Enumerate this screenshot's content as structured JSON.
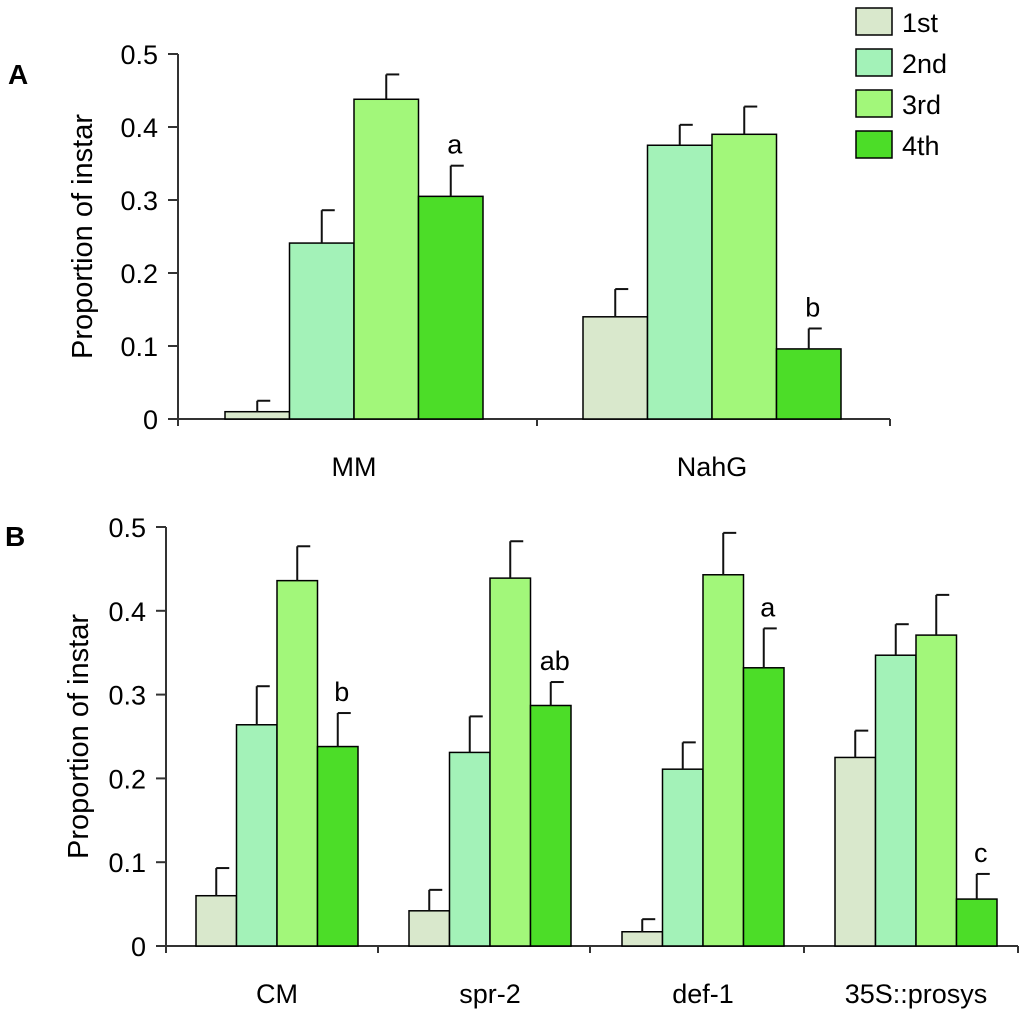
{
  "legend": {
    "entries": [
      {
        "label": "1st",
        "color": "#d9e8cc"
      },
      {
        "label": "2nd",
        "color": "#a3f2b8"
      },
      {
        "label": "3rd",
        "color": "#a2f77a"
      },
      {
        "label": "4th",
        "color": "#4cdd28"
      }
    ]
  },
  "chart_data": [
    {
      "panel": "A",
      "type": "bar",
      "ylabel": "Proportion of instar",
      "xlabel": "",
      "ylim": [
        0,
        0.5
      ],
      "yticks": [
        "0",
        "0.1",
        "0.2",
        "0.3",
        "0.4",
        "0.5"
      ],
      "categories": [
        "MM",
        "NahG"
      ],
      "series": [
        {
          "name": "1st",
          "values": [
            0.01,
            0.14
          ],
          "errors": [
            0.015,
            0.038
          ]
        },
        {
          "name": "2nd",
          "values": [
            0.241,
            0.375
          ],
          "errors": [
            0.045,
            0.028
          ]
        },
        {
          "name": "3rd",
          "values": [
            0.438,
            0.39
          ],
          "errors": [
            0.034,
            0.038
          ]
        },
        {
          "name": "4th",
          "values": [
            0.305,
            0.096
          ],
          "errors": [
            0.042,
            0.028
          ]
        }
      ],
      "annotations": [
        {
          "category": "MM",
          "series": "4th",
          "text": "a"
        },
        {
          "category": "NahG",
          "series": "4th",
          "text": "b"
        }
      ]
    },
    {
      "panel": "B",
      "type": "bar",
      "ylabel": "Proportion of instar",
      "xlabel": "",
      "ylim": [
        0,
        0.5
      ],
      "yticks": [
        "0",
        "0.1",
        "0.2",
        "0.3",
        "0.4",
        "0.5"
      ],
      "categories": [
        "CM",
        "spr-2",
        "def-1",
        "35S::prosys"
      ],
      "series": [
        {
          "name": "1st",
          "values": [
            0.06,
            0.042,
            0.017,
            0.225
          ],
          "errors": [
            0.033,
            0.025,
            0.015,
            0.032
          ]
        },
        {
          "name": "2nd",
          "values": [
            0.264,
            0.231,
            0.211,
            0.347
          ],
          "errors": [
            0.046,
            0.043,
            0.032,
            0.037
          ]
        },
        {
          "name": "3rd",
          "values": [
            0.436,
            0.439,
            0.443,
            0.371
          ],
          "errors": [
            0.041,
            0.044,
            0.05,
            0.048
          ]
        },
        {
          "name": "4th",
          "values": [
            0.238,
            0.287,
            0.332,
            0.056
          ],
          "errors": [
            0.04,
            0.028,
            0.047,
            0.03
          ]
        }
      ],
      "annotations": [
        {
          "category": "CM",
          "series": "4th",
          "text": "b"
        },
        {
          "category": "spr-2",
          "series": "4th",
          "text": "ab"
        },
        {
          "category": "def-1",
          "series": "4th",
          "text": "a"
        },
        {
          "category": "35S::prosys",
          "series": "4th",
          "text": "c"
        }
      ]
    }
  ]
}
